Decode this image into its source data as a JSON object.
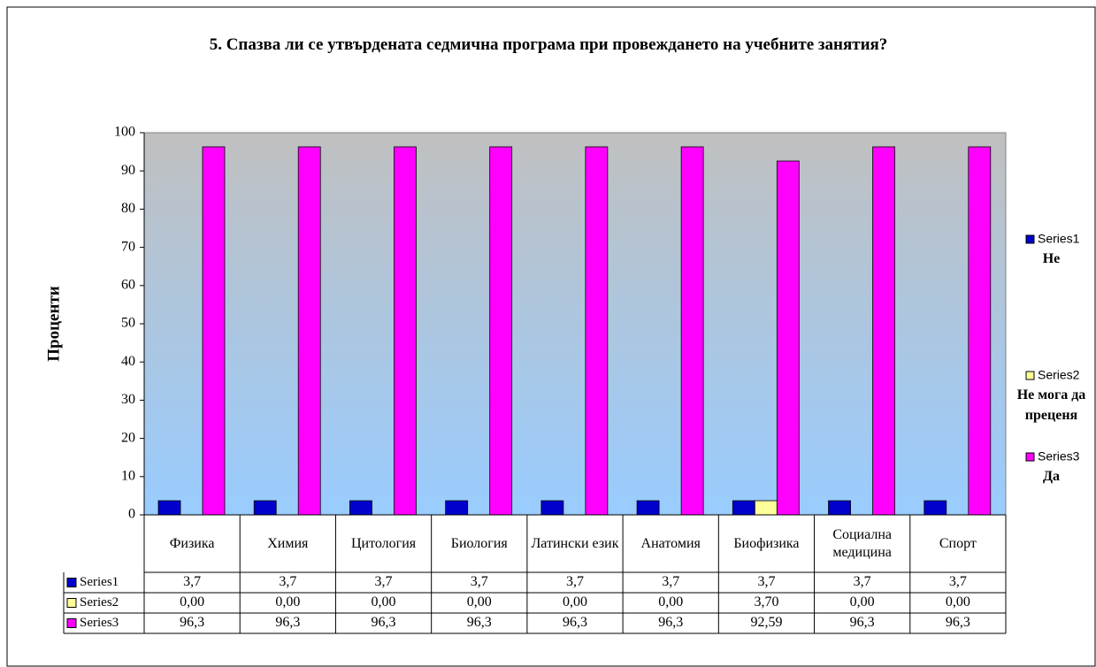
{
  "chart_data": {
    "type": "bar",
    "title": "5. Спазва ли се утвърдената седмична програма при провеждането на учебните занятия?",
    "y_label": "Проценти",
    "categories": [
      "Физика",
      "Химия",
      "Цитология",
      "Биология",
      "Латински език",
      "Анатомия",
      "Биофизика",
      "Социална медицина",
      "Спорт"
    ],
    "series": [
      {
        "name": "Series1",
        "color": "#0000cc",
        "legend_note": "Не",
        "values": [
          3.7,
          3.7,
          3.7,
          3.7,
          3.7,
          3.7,
          3.7,
          3.7,
          3.7
        ],
        "value_labels": [
          "3,7",
          "3,7",
          "3,7",
          "3,7",
          "3,7",
          "3,7",
          "3,7",
          "3,7",
          "3,7"
        ]
      },
      {
        "name": "Series2",
        "color": "#ffff99",
        "legend_note": "Не мога да преценя",
        "values": [
          0,
          0,
          0,
          0,
          0,
          0,
          3.7,
          0,
          0
        ],
        "value_labels": [
          "0,00",
          "0,00",
          "0,00",
          "0,00",
          "0,00",
          "0,00",
          "3,70",
          "0,00",
          "0,00"
        ]
      },
      {
        "name": "Series3",
        "color": "#ff00ff",
        "legend_note": "Да",
        "values": [
          96.3,
          96.3,
          96.3,
          96.3,
          96.3,
          96.3,
          92.59,
          96.3,
          96.3
        ],
        "value_labels": [
          "96,3",
          "96,3",
          "96,3",
          "96,3",
          "96,3",
          "96,3",
          "92,59",
          "96,3",
          "96,3"
        ]
      }
    ],
    "ylim": [
      0,
      100
    ],
    "yticks": [
      0,
      10,
      20,
      30,
      40,
      50,
      60,
      70,
      80,
      90,
      100
    ],
    "legend": "right",
    "data_table": true
  }
}
